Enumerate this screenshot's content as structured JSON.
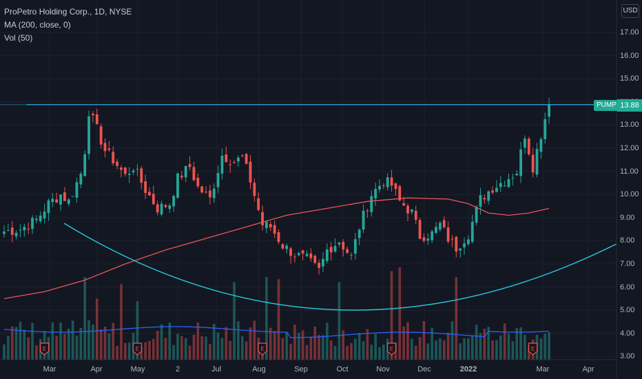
{
  "legend": {
    "title": "ProPetro Holding Corp., 1D, NYSE",
    "ma": "MA (200, close, 0)",
    "vol": "Vol (50)"
  },
  "currency": "USD",
  "symbol_tag": "PUMP",
  "last_price": "13.88",
  "colors": {
    "background": "#131722",
    "up": "#26a69a",
    "down": "#ef5350",
    "ma": "#f05454",
    "arc": "#26c6da",
    "hline": "#29b6f6",
    "vol_ma": "#2962ff",
    "tag": "#22ab94"
  },
  "chart_data": {
    "type": "candlestick",
    "y_ticks": [
      "17.00",
      "16.00",
      "15.00",
      "14.00",
      "13.00",
      "12.00",
      "11.00",
      "10.00",
      "9.00",
      "8.00",
      "7.00",
      "6.00",
      "5.00",
      "4.00",
      "3.00"
    ],
    "ylim": [
      2.9,
      17.7
    ],
    "x_ticks": [
      "Mar",
      "Apr",
      "May",
      "2",
      "Jul",
      "Aug",
      "Sep",
      "Oct",
      "Nov",
      "Dec",
      "2022",
      "Mar",
      "Apr"
    ],
    "horizontal_level": 13.88,
    "close_path": [
      [
        0,
        8.4
      ],
      [
        4,
        8.5
      ],
      [
        8,
        8.9
      ],
      [
        11,
        9.6
      ],
      [
        14,
        10.0
      ],
      [
        16,
        9.7
      ],
      [
        19,
        10.9
      ],
      [
        20,
        11.9
      ],
      [
        21,
        13.6
      ],
      [
        23,
        12.8
      ],
      [
        25,
        11.9
      ],
      [
        27,
        11.5
      ],
      [
        30,
        10.8
      ],
      [
        32,
        11.2
      ],
      [
        35,
        10.2
      ],
      [
        38,
        9.4
      ],
      [
        41,
        9.6
      ],
      [
        43,
        10.7
      ],
      [
        46,
        11.2
      ],
      [
        48,
        10.3
      ],
      [
        51,
        9.8
      ],
      [
        54,
        11.7
      ],
      [
        57,
        11.4
      ],
      [
        59,
        11.6
      ],
      [
        61,
        10.6
      ],
      [
        64,
        8.7
      ],
      [
        66,
        8.6
      ],
      [
        69,
        7.8
      ],
      [
        72,
        7.4
      ],
      [
        75,
        7.2
      ],
      [
        78,
        6.7
      ],
      [
        80,
        7.6
      ],
      [
        83,
        8.0
      ],
      [
        86,
        7.3
      ],
      [
        88,
        8.6
      ],
      [
        91,
        10.0
      ],
      [
        94,
        10.6
      ],
      [
        96,
        10.4
      ],
      [
        98,
        9.7
      ],
      [
        101,
        9.2
      ],
      [
        103,
        8.2
      ],
      [
        106,
        8.3
      ],
      [
        108,
        8.7
      ],
      [
        110,
        8.1
      ],
      [
        112,
        7.7
      ],
      [
        115,
        8.3
      ],
      [
        118,
        9.8
      ],
      [
        121,
        10.3
      ],
      [
        124,
        10.6
      ],
      [
        127,
        11.0
      ],
      [
        129,
        12.6
      ],
      [
        131,
        11.2
      ],
      [
        132,
        11.9
      ],
      [
        134,
        13.3
      ],
      [
        135,
        13.88
      ]
    ],
    "ma200": [
      [
        0,
        5.5
      ],
      [
        10,
        5.8
      ],
      [
        20,
        6.3
      ],
      [
        30,
        7.0
      ],
      [
        40,
        7.6
      ],
      [
        50,
        8.1
      ],
      [
        60,
        8.6
      ],
      [
        70,
        9.1
      ],
      [
        80,
        9.4
      ],
      [
        90,
        9.7
      ],
      [
        100,
        9.85
      ],
      [
        110,
        9.8
      ],
      [
        115,
        9.6
      ],
      [
        120,
        9.2
      ],
      [
        125,
        9.1
      ],
      [
        130,
        9.2
      ],
      [
        135,
        9.4
      ]
    ],
    "arc_label": "",
    "volume_scale_label": ""
  }
}
